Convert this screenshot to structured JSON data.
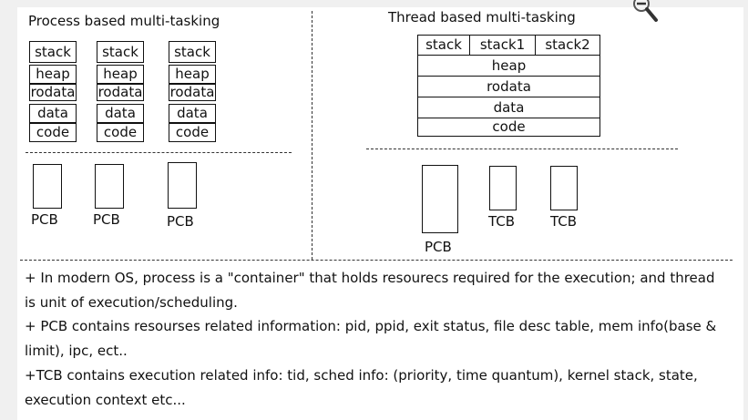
{
  "process_section": {
    "title": "Process based multi-tasking",
    "columns": [
      {
        "stack": "stack",
        "heap": "heap",
        "rodata": "rodata",
        "data": "data",
        "code": "code"
      },
      {
        "stack": "stack",
        "heap": "heap",
        "rodata": "rodata",
        "data": "data",
        "code": "code"
      },
      {
        "stack": "stack",
        "heap": "heap",
        "rodata": "rodata",
        "data": "data",
        "code": "code"
      }
    ],
    "pcb_labels": [
      "PCB",
      "PCB",
      "PCB"
    ]
  },
  "thread_section": {
    "title": "Thread based multi-tasking",
    "stacks": [
      "stack",
      "stack1",
      "stack2"
    ],
    "heap": "heap",
    "rodata": "rodata",
    "data": "data",
    "code": "code",
    "pcb_label": "PCB",
    "tcb_labels": [
      "TCB",
      "TCB"
    ]
  },
  "notes": [
    "+ In modern OS, process is a \"container\" that holds resourecs required for the execution; and thread is unit of execution/scheduling.",
    "+ PCB contains resourses related information: pid, ppid, exit status, file desc table, mem info(base & limit), ipc, ect..",
    "+TCB contains execution related info: tid, sched info: (priority, time quantum), kernel stack, state, execution context etc..."
  ],
  "icons": {
    "zoom": "zoom-out-magnifier-icon"
  }
}
